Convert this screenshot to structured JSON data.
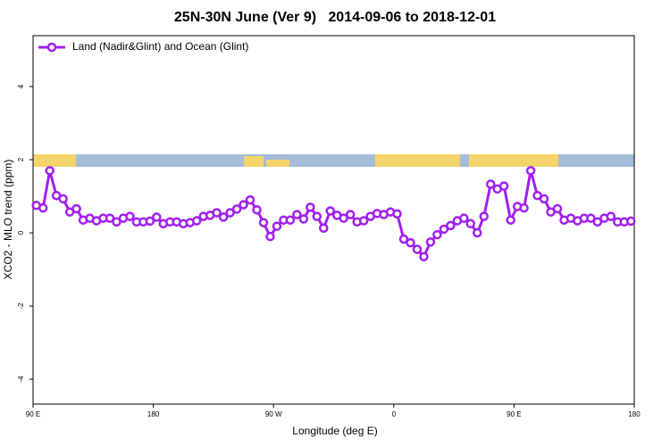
{
  "chart_data": {
    "type": "line",
    "title": "25N-30N June (Ver 9)   2014-09-06 to 2018-12-01",
    "xlabel": "Longitude (deg E)",
    "ylabel": "XCO2 - MLO trend (ppm)",
    "x": [
      92.5,
      97.5,
      102.5,
      107.5,
      112.5,
      117.5,
      122.5,
      127.5,
      132.5,
      137.5,
      142.5,
      147.5,
      152.5,
      157.5,
      162.5,
      167.5,
      172.5,
      177.5,
      182.5,
      187.5,
      192.5,
      197.5,
      202.5,
      207.5,
      212.5,
      217.5,
      222.5,
      227.5,
      232.5,
      237.5,
      242.5,
      247.5,
      252.5,
      257.5,
      262.5,
      267.5,
      272.5,
      277.5,
      282.5,
      287.5,
      292.5,
      297.5,
      302.5,
      307.5,
      312.5,
      317.5,
      322.5,
      327.5,
      332.5,
      337.5,
      342.5,
      347.5,
      352.5,
      357.5,
      362.5,
      367.5,
      372.5,
      377.5,
      382.5,
      387.5,
      392.5,
      397.5,
      402.5,
      407.5,
      412.5,
      417.5,
      422.5,
      427.5,
      432.5,
      437.5,
      442.5,
      447.5,
      452.5,
      457.5,
      462.5,
      467.5,
      472.5,
      477.5,
      482.5,
      487.5,
      492.5,
      497.5,
      502.5,
      507.5,
      512.5,
      517.5,
      522.5,
      527.5,
      532.5,
      537.5
    ],
    "series": [
      {
        "name": "Land (Nadir&Glint) and Ocean (Glint)",
        "color": "#a020f0",
        "values": [
          0.75,
          0.68,
          1.7,
          1.02,
          0.93,
          0.57,
          0.66,
          0.35,
          0.4,
          0.33,
          0.4,
          0.4,
          0.3,
          0.4,
          0.45,
          0.3,
          0.3,
          0.32,
          0.43,
          0.25,
          0.3,
          0.3,
          0.25,
          0.28,
          0.33,
          0.45,
          0.48,
          0.55,
          0.43,
          0.55,
          0.65,
          0.77,
          0.9,
          0.63,
          0.28,
          -0.1,
          0.18,
          0.35,
          0.35,
          0.5,
          0.38,
          0.7,
          0.45,
          0.13,
          0.6,
          0.48,
          0.4,
          0.5,
          0.3,
          0.33,
          0.45,
          0.53,
          0.5,
          0.57,
          0.52,
          -0.17,
          -0.27,
          -0.45,
          -0.65,
          -0.25,
          -0.05,
          0.1,
          0.2,
          0.33,
          0.4,
          0.25,
          0.0,
          0.45,
          1.33,
          1.2,
          1.28,
          0.35,
          0.72,
          0.68,
          1.7,
          1.02,
          0.93,
          0.57,
          0.66,
          0.35,
          0.4,
          0.33,
          0.4,
          0.4,
          0.3,
          0.4,
          0.45,
          0.3,
          0.3,
          0.32
        ]
      }
    ],
    "xlim": [
      90,
      540
    ],
    "xticks": [
      {
        "value": 90,
        "label": "90 E"
      },
      180,
      {
        "value": 270,
        "label": "90 W"
      },
      {
        "value": 360,
        "label": "0"
      },
      {
        "value": 450,
        "label": "90 E"
      },
      {
        "value": 540,
        "label": "180"
      }
    ],
    "ylim": [
      -4.68,
      5.39
    ],
    "yticks": [
      -4,
      -2,
      0,
      2,
      4
    ],
    "legend": "upper left"
  }
}
